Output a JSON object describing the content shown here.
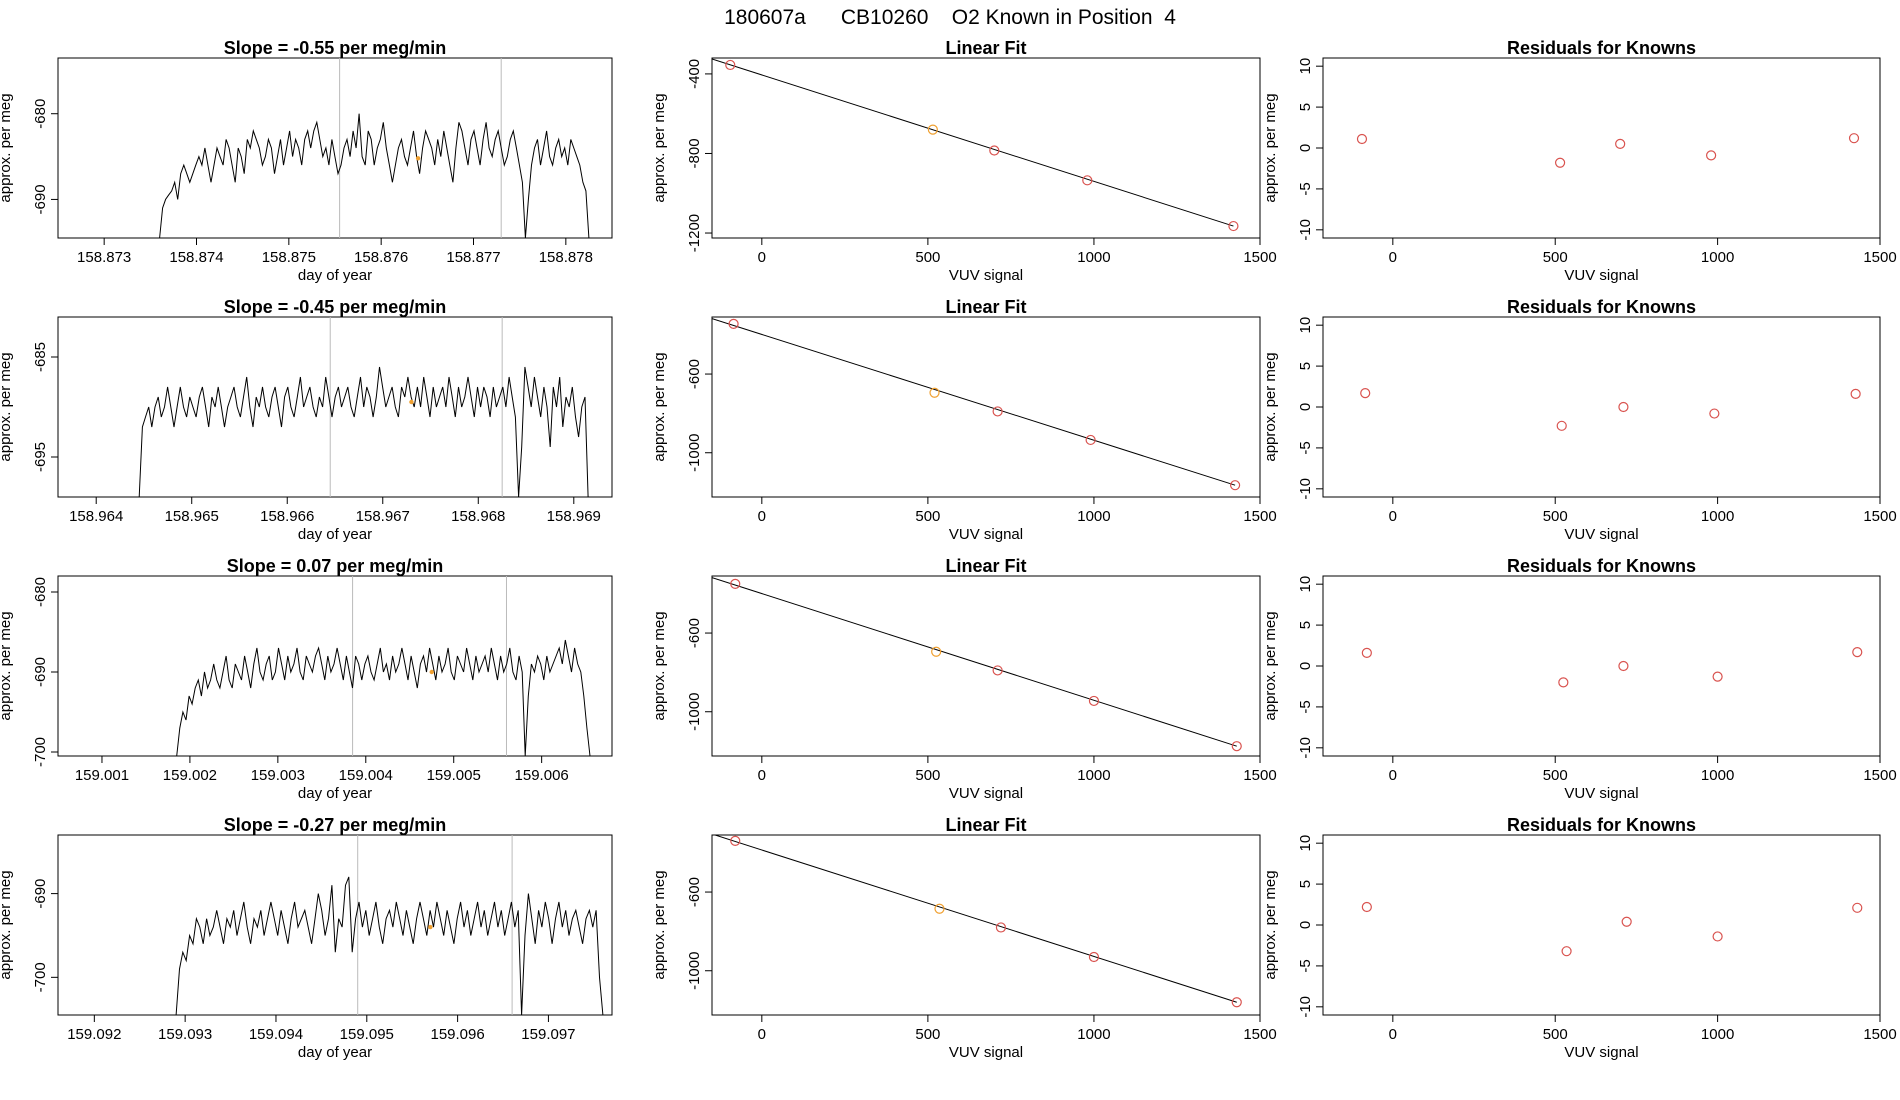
{
  "page": {
    "title": "180607a      CB10260    O2 Known in Position  4"
  },
  "colors": {
    "trace": "#000000",
    "marker": "#f0a030",
    "point": "#d9534f",
    "vline": "#bbbbbb",
    "fit": "#000000"
  },
  "chart_data": [
    {
      "type": "line",
      "title": "Slope =  -0.55  per meg/min",
      "xlabel": "day of year",
      "ylabel": "approx. per meg",
      "xlim": [
        158.8725,
        158.8785
      ],
      "ylim": [
        -694.5,
        -673.5
      ],
      "xticks": [
        158.873,
        158.874,
        158.875,
        158.876,
        158.877,
        158.878
      ],
      "yticks": [
        -690,
        -680
      ],
      "series_start_x": 158.8736,
      "series_end_x": 158.87825,
      "vlines": [
        158.87555,
        158.8773
      ],
      "marker": {
        "x": 158.8764,
        "y": -685.2
      },
      "values": [
        -694.5,
        -691,
        -690,
        -689.5,
        -689,
        -688,
        -690,
        -687,
        -686,
        -687,
        -688,
        -687,
        -686,
        -685,
        -686,
        -684,
        -686,
        -688,
        -686,
        -684,
        -685,
        -686,
        -683,
        -684,
        -686,
        -688,
        -684,
        -685,
        -687,
        -683,
        -684,
        -682,
        -683,
        -684,
        -686,
        -685,
        -683,
        -684,
        -687,
        -685,
        -683,
        -686,
        -684,
        -682,
        -685,
        -683,
        -684,
        -686,
        -683,
        -682,
        -684,
        -682,
        -681,
        -683,
        -685,
        -684,
        -686,
        -683,
        -685,
        -687,
        -686,
        -684,
        -683,
        -685,
        -682,
        -684,
        -680,
        -685,
        -686,
        -682,
        -683,
        -686,
        -684,
        -683,
        -681,
        -684,
        -686,
        -688,
        -686,
        -684,
        -683,
        -685,
        -686,
        -684,
        -682,
        -685,
        -687,
        -684,
        -682,
        -683,
        -684,
        -686,
        -683,
        -685,
        -682,
        -684,
        -686,
        -688,
        -684,
        -681,
        -682,
        -684,
        -686,
        -683,
        -682,
        -684,
        -686,
        -683,
        -681,
        -684,
        -685,
        -683,
        -682,
        -684,
        -686,
        -685,
        -683,
        -682,
        -684,
        -686,
        -688,
        -694.5,
        -690,
        -686,
        -684,
        -683,
        -686,
        -684,
        -682,
        -685,
        -686,
        -684,
        -683,
        -685,
        -684,
        -686,
        -683,
        -684,
        -685,
        -686,
        -688,
        -689,
        -694.5
      ]
    },
    {
      "type": "scatter",
      "title": "Linear Fit",
      "xlabel": "VUV signal",
      "ylabel": "approx. per meg",
      "xlim": [
        -150,
        1500
      ],
      "ylim": [
        -1225,
        -320
      ],
      "xticks": [
        0,
        500,
        1000,
        1500
      ],
      "yticks": [
        -1200,
        -800,
        -400
      ],
      "x": [
        -95,
        515,
        700,
        980,
        1420
      ],
      "y": [
        -355,
        -680,
        -785,
        -935,
        -1165
      ],
      "fit_line": {
        "x": [
          -150,
          1420
        ],
        "y": [
          -325,
          -1165
        ]
      },
      "highlight_index": 1
    },
    {
      "type": "scatter",
      "title": "Residuals for Knowns",
      "xlabel": "VUV signal",
      "ylabel": "approx. per meg",
      "xlim": [
        -215,
        1500
      ],
      "ylim": [
        -11,
        11
      ],
      "xticks": [
        0,
        500,
        1000,
        1500
      ],
      "yticks": [
        -10,
        -5,
        0,
        5,
        10
      ],
      "x": [
        -95,
        515,
        700,
        980,
        1420
      ],
      "y": [
        1.1,
        -1.8,
        0.5,
        -0.9,
        1.2
      ]
    },
    {
      "type": "line",
      "title": "Slope =  -0.45  per meg/min",
      "xlabel": "day of year",
      "ylabel": "approx. per meg",
      "xlim": [
        158.9636,
        158.9694
      ],
      "ylim": [
        -699,
        -681
      ],
      "xticks": [
        158.964,
        158.965,
        158.966,
        158.967,
        158.968,
        158.969
      ],
      "yticks": [
        -695,
        -685
      ],
      "series_start_x": 158.96445,
      "series_end_x": 158.96915,
      "vlines": [
        158.96645,
        158.96825
      ],
      "marker": {
        "x": 158.9673,
        "y": -689.5
      },
      "values": [
        -699,
        -692,
        -691,
        -690,
        -692,
        -690,
        -689,
        -691,
        -690,
        -688,
        -690,
        -692,
        -690,
        -688,
        -690,
        -691,
        -689,
        -690,
        -691,
        -689,
        -688,
        -690,
        -692,
        -689,
        -690,
        -688,
        -690,
        -692,
        -690,
        -689,
        -688,
        -690,
        -691,
        -689,
        -687,
        -690,
        -692,
        -689,
        -690,
        -688,
        -690,
        -691,
        -689,
        -688,
        -690,
        -692,
        -689,
        -688,
        -690,
        -691,
        -689,
        -687,
        -690,
        -689,
        -688,
        -690,
        -691,
        -689,
        -690,
        -687,
        -689,
        -691,
        -689,
        -688,
        -690,
        -689,
        -688,
        -690,
        -691,
        -689,
        -687,
        -690,
        -688,
        -689,
        -691,
        -689,
        -686,
        -688,
        -690,
        -689,
        -688,
        -690,
        -691,
        -688,
        -689,
        -687,
        -689,
        -690,
        -688,
        -690,
        -687,
        -689,
        -691,
        -688,
        -690,
        -689,
        -688,
        -690,
        -687,
        -689,
        -691,
        -688,
        -690,
        -689,
        -687,
        -689,
        -691,
        -688,
        -690,
        -688,
        -689,
        -691,
        -688,
        -690,
        -689,
        -688,
        -690,
        -687,
        -689,
        -691,
        -699,
        -694,
        -686,
        -688,
        -690,
        -687,
        -689,
        -691,
        -688,
        -690,
        -694,
        -688,
        -690,
        -687,
        -692,
        -689,
        -690,
        -688,
        -691,
        -693,
        -690,
        -689,
        -699
      ]
    },
    {
      "type": "scatter",
      "title": "Linear Fit",
      "xlabel": "VUV signal",
      "ylabel": "approx. per meg",
      "xlim": [
        -150,
        1500
      ],
      "ylim": [
        -1225,
        -310
      ],
      "xticks": [
        0,
        500,
        1000,
        1500
      ],
      "yticks": [
        -1000,
        -600
      ],
      "x": [
        -85,
        520,
        710,
        990,
        1425
      ],
      "y": [
        -345,
        -695,
        -790,
        -935,
        -1165
      ],
      "fit_line": {
        "x": [
          -150,
          1425
        ],
        "y": [
          -318,
          -1165
        ]
      },
      "highlight_index": 1
    },
    {
      "type": "scatter",
      "title": "Residuals for Knowns",
      "xlabel": "VUV signal",
      "ylabel": "approx. per meg",
      "xlim": [
        -215,
        1500
      ],
      "ylim": [
        -11,
        11
      ],
      "xticks": [
        0,
        500,
        1000,
        1500
      ],
      "yticks": [
        -10,
        -5,
        0,
        5,
        10
      ],
      "x": [
        -85,
        520,
        710,
        990,
        1425
      ],
      "y": [
        1.7,
        -2.3,
        0.0,
        -0.8,
        1.6
      ]
    },
    {
      "type": "line",
      "title": "Slope =  0.07  per meg/min",
      "xlabel": "day of year",
      "ylabel": "approx. per meg",
      "xlim": [
        159.0005,
        159.0068
      ],
      "ylim": [
        -700.5,
        -678
      ],
      "xticks": [
        159.001,
        159.002,
        159.003,
        159.004,
        159.005,
        159.006
      ],
      "yticks": [
        -700,
        -690,
        -680
      ],
      "series_start_x": 159.00185,
      "series_end_x": 159.00655,
      "vlines": [
        159.00385,
        159.0056
      ],
      "marker": {
        "x": 159.00475,
        "y": -690
      },
      "values": [
        -700.5,
        -697,
        -695,
        -696,
        -693,
        -694,
        -692,
        -691,
        -693,
        -690,
        -692,
        -691,
        -689,
        -691,
        -692,
        -690,
        -688,
        -691,
        -692,
        -689,
        -690,
        -691,
        -688,
        -690,
        -692,
        -689,
        -687,
        -690,
        -691,
        -689,
        -688,
        -691,
        -690,
        -687,
        -689,
        -691,
        -688,
        -690,
        -689,
        -687,
        -690,
        -691,
        -688,
        -689,
        -690,
        -688,
        -687,
        -689,
        -691,
        -688,
        -690,
        -689,
        -687,
        -689,
        -691,
        -688,
        -690,
        -692,
        -688,
        -689,
        -691,
        -689,
        -688,
        -690,
        -691,
        -689,
        -687,
        -690,
        -689,
        -691,
        -688,
        -690,
        -689,
        -687,
        -689,
        -691,
        -688,
        -690,
        -692,
        -689,
        -688,
        -690,
        -687,
        -689,
        -691,
        -688,
        -690,
        -689,
        -687,
        -690,
        -691,
        -688,
        -689,
        -690,
        -687,
        -689,
        -691,
        -688,
        -690,
        -689,
        -688,
        -690,
        -687,
        -689,
        -691,
        -688,
        -690,
        -689,
        -687,
        -690,
        -691,
        -688,
        -690,
        -700.5,
        -693,
        -689,
        -690,
        -688,
        -689,
        -691,
        -688,
        -690,
        -689,
        -688,
        -687,
        -689,
        -686,
        -688,
        -690,
        -687,
        -689,
        -690,
        -693,
        -697,
        -700.5
      ]
    },
    {
      "type": "scatter",
      "title": "Linear Fit",
      "xlabel": "VUV signal",
      "ylabel": "approx. per meg",
      "xlim": [
        -150,
        1500
      ],
      "ylim": [
        -1225,
        -310
      ],
      "xticks": [
        0,
        500,
        1000,
        1500
      ],
      "yticks": [
        -1000,
        -600
      ],
      "x": [
        -80,
        525,
        710,
        1000,
        1430
      ],
      "y": [
        -350,
        -695,
        -790,
        -945,
        -1175
      ],
      "fit_line": {
        "x": [
          -150,
          1430
        ],
        "y": [
          -318,
          -1175
        ]
      },
      "highlight_index": 1
    },
    {
      "type": "scatter",
      "title": "Residuals for Knowns",
      "xlabel": "VUV signal",
      "ylabel": "approx. per meg",
      "xlim": [
        -215,
        1500
      ],
      "ylim": [
        -11,
        11
      ],
      "xticks": [
        0,
        500,
        1000,
        1500
      ],
      "yticks": [
        -10,
        -5,
        0,
        5,
        10
      ],
      "x": [
        -80,
        525,
        710,
        1000,
        1430
      ],
      "y": [
        1.6,
        -2.0,
        0.0,
        -1.3,
        1.7
      ]
    },
    {
      "type": "line",
      "title": "Slope =  -0.27  per meg/min",
      "xlabel": "day of year",
      "ylabel": "approx. per meg",
      "xlim": [
        159.0916,
        159.0977
      ],
      "ylim": [
        -704.5,
        -683
      ],
      "xticks": [
        159.092,
        159.093,
        159.094,
        159.095,
        159.096,
        159.097
      ],
      "yticks": [
        -700,
        -690
      ],
      "series_start_x": 159.0929,
      "series_end_x": 159.0976,
      "vlines": [
        159.0949,
        159.0966
      ],
      "marker": {
        "x": 159.0957,
        "y": -694
      },
      "values": [
        -704.5,
        -699,
        -697,
        -698,
        -695,
        -696,
        -693,
        -694,
        -696,
        -693,
        -695,
        -694,
        -692,
        -694,
        -696,
        -693,
        -694,
        -692,
        -695,
        -693,
        -691,
        -694,
        -696,
        -693,
        -694,
        -692,
        -695,
        -693,
        -691,
        -693,
        -695,
        -692,
        -694,
        -696,
        -693,
        -691,
        -694,
        -693,
        -692,
        -694,
        -696,
        -693,
        -690,
        -692,
        -695,
        -693,
        -689,
        -697,
        -693,
        -694,
        -689,
        -688,
        -697,
        -693,
        -691,
        -694,
        -692,
        -695,
        -693,
        -691,
        -694,
        -696,
        -693,
        -692,
        -694,
        -691,
        -693,
        -695,
        -692,
        -694,
        -696,
        -693,
        -691,
        -693,
        -695,
        -692,
        -694,
        -691,
        -693,
        -695,
        -692,
        -694,
        -696,
        -693,
        -691,
        -694,
        -692,
        -695,
        -693,
        -691,
        -694,
        -692,
        -695,
        -693,
        -691,
        -694,
        -692,
        -695,
        -693,
        -691,
        -694,
        -692,
        -704.5,
        -695,
        -690,
        -693,
        -696,
        -692,
        -694,
        -691,
        -693,
        -696,
        -693,
        -691,
        -694,
        -692,
        -695,
        -693,
        -692,
        -694,
        -696,
        -693,
        -692,
        -694,
        -692,
        -700,
        -704.5
      ]
    },
    {
      "type": "scatter",
      "title": "Linear Fit",
      "xlabel": "VUV signal",
      "ylabel": "approx. per meg",
      "xlim": [
        -150,
        1500
      ],
      "ylim": [
        -1225,
        -310
      ],
      "xticks": [
        0,
        500,
        1000,
        1500
      ],
      "yticks": [
        -1000,
        -600
      ],
      "x": [
        -80,
        535,
        720,
        1000,
        1430
      ],
      "y": [
        -340,
        -685,
        -780,
        -930,
        -1160
      ],
      "fit_line": {
        "x": [
          -150,
          1430
        ],
        "y": [
          -305,
          -1160
        ]
      },
      "highlight_index": 1
    },
    {
      "type": "scatter",
      "title": "Residuals for Knowns",
      "xlabel": "VUV signal",
      "ylabel": "approx. per meg",
      "xlim": [
        -215,
        1500
      ],
      "ylim": [
        -11,
        11
      ],
      "xticks": [
        0,
        500,
        1000,
        1500
      ],
      "yticks": [
        -10,
        -5,
        0,
        5,
        10
      ],
      "x": [
        -80,
        535,
        720,
        1000,
        1430
      ],
      "y": [
        2.2,
        -3.2,
        0.4,
        -1.4,
        2.1
      ]
    }
  ]
}
